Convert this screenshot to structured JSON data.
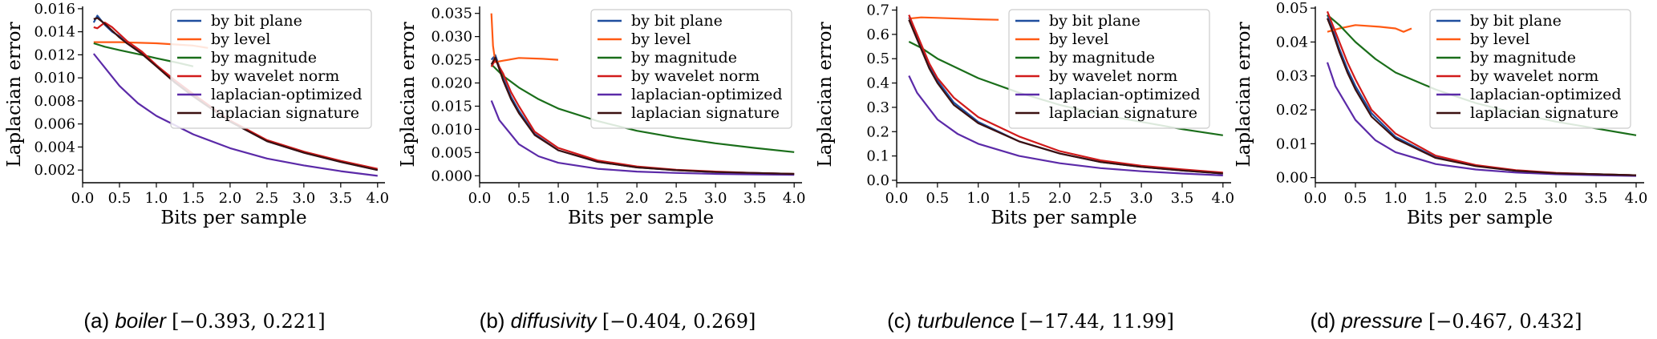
{
  "figure": {
    "series_colors": {
      "by bit plane": "#1f4e9e",
      "by level": "#ff5a14",
      "by magnitude": "#1a6e1a",
      "by wavelet norm": "#d11a1a",
      "laplacian-optimized": "#5b2aa8",
      "laplacian signature": "#3a1010"
    }
  },
  "chart_data": [
    {
      "type": "line",
      "caption_prefix": "(a)",
      "caption_name": "boiler",
      "caption_range": "[−0.393, 0.221]",
      "xlabel": "Bits per sample",
      "ylabel": "Laplacian error",
      "xlim": [
        0.0,
        4.1
      ],
      "ylim": [
        0.0009,
        0.0162
      ],
      "xticks": [
        "0.0",
        "0.5",
        "1.0",
        "1.5",
        "2.0",
        "2.5",
        "3.0",
        "3.5",
        "4.0"
      ],
      "yticks": [
        "0.002",
        "0.004",
        "0.006",
        "0.008",
        "0.010",
        "0.012",
        "0.014",
        "0.016"
      ],
      "legend_position": "top-right",
      "series": [
        {
          "name": "by bit plane",
          "x": [
            0.15,
            0.2,
            0.3,
            0.4,
            0.5,
            0.6,
            0.8,
            1.0,
            1.25,
            1.5,
            2.0,
            2.5,
            3.0,
            3.5,
            4.0
          ],
          "y": [
            0.0148,
            0.0154,
            0.0146,
            0.014,
            0.0136,
            0.013,
            0.0122,
            0.0111,
            0.0097,
            0.0085,
            0.0062,
            0.0045,
            0.0035,
            0.0027,
            0.002
          ]
        },
        {
          "name": "by level",
          "x": [
            0.15,
            0.5,
            1.0,
            1.5,
            1.7
          ],
          "y": [
            0.0131,
            0.0131,
            0.013,
            0.0128,
            0.0126
          ]
        },
        {
          "name": "by magnitude",
          "x": [
            0.15,
            0.3,
            0.5,
            0.8,
            1.0,
            1.3,
            1.5
          ],
          "y": [
            0.013,
            0.0127,
            0.0124,
            0.012,
            0.0117,
            0.0113,
            0.011
          ]
        },
        {
          "name": "by wavelet norm",
          "x": [
            0.15,
            0.2,
            0.3,
            0.4,
            0.5,
            0.6,
            0.8,
            1.0,
            1.25,
            1.5,
            2.0,
            2.5,
            3.0,
            3.5,
            4.0
          ],
          "y": [
            0.0144,
            0.0143,
            0.0148,
            0.0144,
            0.0138,
            0.0132,
            0.0123,
            0.0111,
            0.0098,
            0.0086,
            0.0063,
            0.0046,
            0.0036,
            0.0028,
            0.0021
          ]
        },
        {
          "name": "laplacian-optimized",
          "x": [
            0.15,
            0.25,
            0.5,
            0.75,
            1.0,
            1.5,
            2.0,
            2.5,
            3.0,
            3.5,
            4.0
          ],
          "y": [
            0.0121,
            0.0113,
            0.0093,
            0.0078,
            0.0067,
            0.0051,
            0.0039,
            0.003,
            0.0024,
            0.0019,
            0.0015
          ]
        },
        {
          "name": "laplacian signature",
          "x": [
            0.15,
            0.2,
            0.3,
            0.4,
            0.5,
            0.6,
            0.8,
            1.0,
            1.25,
            1.5,
            2.0,
            2.5,
            3.0,
            3.5,
            4.0
          ],
          "y": [
            0.0151,
            0.0152,
            0.0147,
            0.0141,
            0.0135,
            0.013,
            0.0121,
            0.011,
            0.0096,
            0.0084,
            0.0062,
            0.0045,
            0.0035,
            0.0027,
            0.002
          ]
        }
      ]
    },
    {
      "type": "line",
      "caption_prefix": "(b)",
      "caption_name": "diffusivity",
      "caption_range": "[−0.404, 0.269]",
      "xlabel": "Bits per sample",
      "ylabel": "Laplacian error",
      "xlim": [
        0.0,
        4.1
      ],
      "ylim": [
        -0.0015,
        0.0365
      ],
      "xticks": [
        "0.0",
        "0.5",
        "1.0",
        "1.5",
        "2.0",
        "2.5",
        "3.0",
        "3.5",
        "4.0"
      ],
      "yticks": [
        "0.000",
        "0.005",
        "0.010",
        "0.015",
        "0.020",
        "0.025",
        "0.030",
        "0.035"
      ],
      "legend_position": "top-right",
      "series": [
        {
          "name": "by bit plane",
          "x": [
            0.15,
            0.2,
            0.3,
            0.4,
            0.5,
            0.7,
            1.0,
            1.5,
            2.0,
            2.5,
            3.0,
            3.5,
            4.0
          ],
          "y": [
            0.025,
            0.026,
            0.021,
            0.017,
            0.014,
            0.009,
            0.0055,
            0.003,
            0.0018,
            0.0012,
            0.0008,
            0.0006,
            0.0004
          ]
        },
        {
          "name": "by level",
          "x": [
            0.15,
            0.17,
            0.2,
            0.3,
            0.5,
            0.8,
            1.0
          ],
          "y": [
            0.035,
            0.028,
            0.0245,
            0.0248,
            0.0254,
            0.0252,
            0.025
          ]
        },
        {
          "name": "by magnitude",
          "x": [
            0.15,
            0.3,
            0.5,
            0.75,
            1.0,
            1.5,
            2.0,
            2.5,
            3.0,
            3.5,
            4.0
          ],
          "y": [
            0.024,
            0.0215,
            0.019,
            0.0165,
            0.0145,
            0.0118,
            0.0097,
            0.0082,
            0.007,
            0.006,
            0.0051
          ]
        },
        {
          "name": "by wavelet norm",
          "x": [
            0.15,
            0.2,
            0.3,
            0.4,
            0.5,
            0.7,
            1.0,
            1.5,
            2.0,
            2.5,
            3.0,
            3.5,
            4.0
          ],
          "y": [
            0.0235,
            0.025,
            0.022,
            0.018,
            0.015,
            0.0095,
            0.006,
            0.0033,
            0.002,
            0.0013,
            0.0009,
            0.0006,
            0.0004
          ]
        },
        {
          "name": "laplacian-optimized",
          "x": [
            0.15,
            0.25,
            0.5,
            0.75,
            1.0,
            1.5,
            2.0,
            2.5,
            3.0,
            3.5,
            4.0
          ],
          "y": [
            0.0162,
            0.012,
            0.0068,
            0.0042,
            0.0028,
            0.0015,
            0.0009,
            0.0006,
            0.0004,
            0.0003,
            0.0002
          ]
        },
        {
          "name": "laplacian signature",
          "x": [
            0.15,
            0.2,
            0.3,
            0.4,
            0.5,
            0.7,
            1.0,
            1.5,
            2.0,
            2.5,
            3.0,
            3.5,
            4.0
          ],
          "y": [
            0.024,
            0.0255,
            0.0205,
            0.0165,
            0.0135,
            0.0088,
            0.0055,
            0.003,
            0.0018,
            0.0012,
            0.0008,
            0.0006,
            0.0004
          ]
        }
      ]
    },
    {
      "type": "line",
      "caption_prefix": "(c)",
      "caption_name": "turbulence",
      "caption_range": "[−17.44, 11.99]",
      "xlabel": "Bits per sample",
      "ylabel": "Laplacian error",
      "xlim": [
        0.0,
        4.1
      ],
      "ylim": [
        -0.01,
        0.715
      ],
      "xticks": [
        "0.0",
        "0.5",
        "1.0",
        "1.5",
        "2.0",
        "2.5",
        "3.0",
        "3.5",
        "4.0"
      ],
      "yticks": [
        "0.0",
        "0.1",
        "0.2",
        "0.3",
        "0.4",
        "0.5",
        "0.6",
        "0.7"
      ],
      "legend_position": "top-right",
      "series": [
        {
          "name": "by bit plane",
          "x": [
            0.15,
            0.2,
            0.3,
            0.4,
            0.5,
            0.7,
            1.0,
            1.5,
            2.0,
            2.5,
            3.0,
            3.5,
            4.0
          ],
          "y": [
            0.67,
            0.63,
            0.55,
            0.47,
            0.41,
            0.32,
            0.24,
            0.16,
            0.11,
            0.075,
            0.055,
            0.04,
            0.028
          ]
        },
        {
          "name": "by level",
          "x": [
            0.15,
            0.3,
            0.5,
            0.75,
            1.0,
            1.25
          ],
          "y": [
            0.665,
            0.67,
            0.668,
            0.665,
            0.662,
            0.66
          ]
        },
        {
          "name": "by magnitude",
          "x": [
            0.15,
            0.3,
            0.5,
            0.75,
            1.0,
            1.5,
            2.0,
            2.5,
            3.0,
            3.5,
            4.0
          ],
          "y": [
            0.57,
            0.545,
            0.5,
            0.46,
            0.42,
            0.36,
            0.31,
            0.27,
            0.24,
            0.21,
            0.185
          ]
        },
        {
          "name": "by wavelet norm",
          "x": [
            0.15,
            0.2,
            0.3,
            0.4,
            0.5,
            0.7,
            1.0,
            1.5,
            2.0,
            2.5,
            3.0,
            3.5,
            4.0
          ],
          "y": [
            0.68,
            0.64,
            0.56,
            0.48,
            0.42,
            0.34,
            0.26,
            0.18,
            0.12,
            0.082,
            0.06,
            0.045,
            0.032
          ]
        },
        {
          "name": "laplacian-optimized",
          "x": [
            0.15,
            0.25,
            0.5,
            0.75,
            1.0,
            1.5,
            2.0,
            2.5,
            3.0,
            3.5,
            4.0
          ],
          "y": [
            0.43,
            0.36,
            0.25,
            0.19,
            0.15,
            0.1,
            0.07,
            0.05,
            0.037,
            0.028,
            0.02
          ]
        },
        {
          "name": "laplacian signature",
          "x": [
            0.15,
            0.2,
            0.3,
            0.4,
            0.5,
            0.7,
            1.0,
            1.5,
            2.0,
            2.5,
            3.0,
            3.5,
            4.0
          ],
          "y": [
            0.66,
            0.62,
            0.54,
            0.46,
            0.4,
            0.31,
            0.235,
            0.16,
            0.11,
            0.075,
            0.055,
            0.04,
            0.028
          ]
        }
      ]
    },
    {
      "type": "line",
      "caption_prefix": "(d)",
      "caption_name": "pressure",
      "caption_range": "[−0.467, 0.432]",
      "xlabel": "Bits per sample",
      "ylabel": "Laplacian error",
      "xlim": [
        0.0,
        4.1
      ],
      "ylim": [
        -0.0015,
        0.0505
      ],
      "xticks": [
        "0.0",
        "0.5",
        "1.0",
        "1.5",
        "2.0",
        "2.5",
        "3.0",
        "3.5",
        "4.0"
      ],
      "yticks": [
        "0.00",
        "0.01",
        "0.02",
        "0.03",
        "0.04",
        "0.05"
      ],
      "legend_position": "top-right",
      "series": [
        {
          "name": "by bit plane",
          "x": [
            0.15,
            0.2,
            0.3,
            0.4,
            0.5,
            0.7,
            1.0,
            1.5,
            2.0,
            2.5,
            3.0,
            3.5,
            4.0
          ],
          "y": [
            0.048,
            0.045,
            0.038,
            0.032,
            0.027,
            0.019,
            0.012,
            0.006,
            0.0035,
            0.002,
            0.0013,
            0.001,
            0.0007
          ]
        },
        {
          "name": "by level",
          "x": [
            0.15,
            0.3,
            0.5,
            0.8,
            1.0,
            1.1,
            1.2
          ],
          "y": [
            0.043,
            0.044,
            0.045,
            0.0445,
            0.044,
            0.043,
            0.044
          ]
        },
        {
          "name": "by magnitude",
          "x": [
            0.15,
            0.3,
            0.5,
            0.75,
            1.0,
            1.5,
            2.0,
            2.5,
            3.0,
            3.5,
            4.0
          ],
          "y": [
            0.048,
            0.045,
            0.04,
            0.035,
            0.031,
            0.026,
            0.022,
            0.019,
            0.0165,
            0.0145,
            0.0125
          ]
        },
        {
          "name": "by wavelet norm",
          "x": [
            0.15,
            0.2,
            0.3,
            0.4,
            0.5,
            0.7,
            1.0,
            1.5,
            2.0,
            2.5,
            3.0,
            3.5,
            4.0
          ],
          "y": [
            0.049,
            0.046,
            0.04,
            0.034,
            0.029,
            0.02,
            0.013,
            0.0065,
            0.0037,
            0.0022,
            0.0014,
            0.001,
            0.0007
          ]
        },
        {
          "name": "laplacian-optimized",
          "x": [
            0.15,
            0.25,
            0.5,
            0.75,
            1.0,
            1.5,
            2.0,
            2.5,
            3.0,
            3.5,
            4.0
          ],
          "y": [
            0.034,
            0.027,
            0.017,
            0.011,
            0.0075,
            0.004,
            0.0024,
            0.0015,
            0.001,
            0.0007,
            0.0005
          ]
        },
        {
          "name": "laplacian signature",
          "x": [
            0.15,
            0.2,
            0.3,
            0.4,
            0.5,
            0.7,
            1.0,
            1.5,
            2.0,
            2.5,
            3.0,
            3.5,
            4.0
          ],
          "y": [
            0.047,
            0.044,
            0.037,
            0.031,
            0.026,
            0.018,
            0.0115,
            0.0058,
            0.0034,
            0.002,
            0.0013,
            0.001,
            0.0007
          ]
        }
      ]
    }
  ]
}
